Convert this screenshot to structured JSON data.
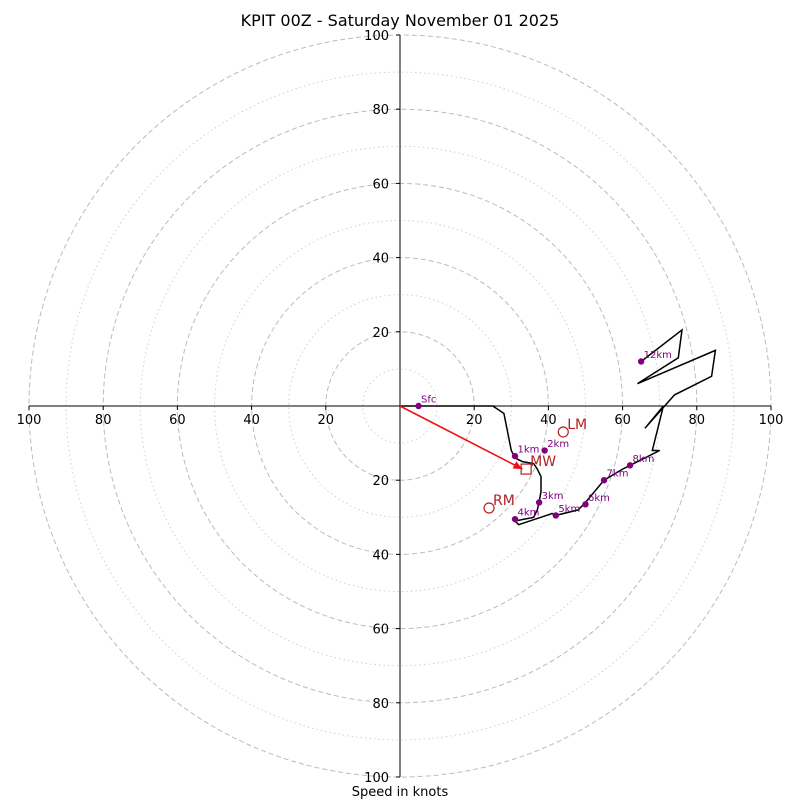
{
  "chart_data": {
    "type": "hodograph",
    "title": "KPIT 00Z - Saturday November 01 2025",
    "xlabel": "Speed in knots",
    "range": [
      -100,
      100
    ],
    "ring_step_dashed": 20,
    "ring_step_dotted": 10,
    "axis_ticks": [
      {
        "value": -100,
        "label": "100"
      },
      {
        "value": -80,
        "label": "80"
      },
      {
        "value": -60,
        "label": "60"
      },
      {
        "value": -40,
        "label": "40"
      },
      {
        "value": -20,
        "label": "20"
      },
      {
        "value": 20,
        "label": "20"
      },
      {
        "value": 40,
        "label": "40"
      },
      {
        "value": 60,
        "label": "60"
      },
      {
        "value": 80,
        "label": "80"
      },
      {
        "value": 100,
        "label": "100"
      }
    ],
    "trace": [
      [
        0,
        0
      ],
      [
        25,
        0
      ],
      [
        28,
        -2
      ],
      [
        30,
        -12
      ],
      [
        31,
        -14
      ],
      [
        33,
        -15
      ],
      [
        36,
        -15.5
      ],
      [
        37,
        -17
      ],
      [
        38,
        -19
      ],
      [
        38,
        -23
      ],
      [
        37.5,
        -26
      ],
      [
        37,
        -28
      ],
      [
        36,
        -30
      ],
      [
        31,
        -31
      ],
      [
        32,
        -32
      ],
      [
        41,
        -29
      ],
      [
        42,
        -29.5
      ],
      [
        48,
        -28
      ],
      [
        50,
        -26
      ],
      [
        55,
        -20
      ],
      [
        60,
        -17
      ],
      [
        62,
        -16
      ],
      [
        70,
        -12
      ],
      [
        68,
        -12
      ],
      [
        71,
        0
      ],
      [
        66,
        -6
      ],
      [
        74,
        3
      ],
      [
        84,
        8
      ],
      [
        85,
        15
      ],
      [
        64,
        6
      ],
      [
        75,
        13
      ],
      [
        76,
        20.5
      ],
      [
        65,
        12
      ]
    ],
    "height_markers": [
      {
        "label": "Sfc",
        "u": 5,
        "v": 0
      },
      {
        "label": "1km",
        "u": 31,
        "v": -13.5
      },
      {
        "label": "2km",
        "u": 39,
        "v": -12
      },
      {
        "label": "3km",
        "u": 37.5,
        "v": -26
      },
      {
        "label": "4km",
        "u": 31,
        "v": -30.5
      },
      {
        "label": "5km",
        "u": 42,
        "v": -29.5
      },
      {
        "label": "6km",
        "u": 50,
        "v": -26.5
      },
      {
        "label": "7km",
        "u": 55,
        "v": -20
      },
      {
        "label": "8km",
        "u": 62,
        "v": -16
      },
      {
        "label": "12km",
        "u": 65,
        "v": 12
      }
    ],
    "storm_motion": [
      {
        "label": "LM",
        "u": 44,
        "v": -7,
        "marker": "circle"
      },
      {
        "label": "MW",
        "u": 34,
        "v": -17,
        "marker": "square"
      },
      {
        "label": "RM",
        "u": 24,
        "v": -27.5,
        "marker": "circle"
      }
    ],
    "shear_vector": {
      "from": [
        0,
        0
      ],
      "to": [
        33,
        -17
      ]
    },
    "colors": {
      "trace": "#000000",
      "marker": "#800080",
      "storm": "#b22222",
      "shear": "#ee1111",
      "ring": "#bbbbbb",
      "axis": "#000000"
    }
  }
}
